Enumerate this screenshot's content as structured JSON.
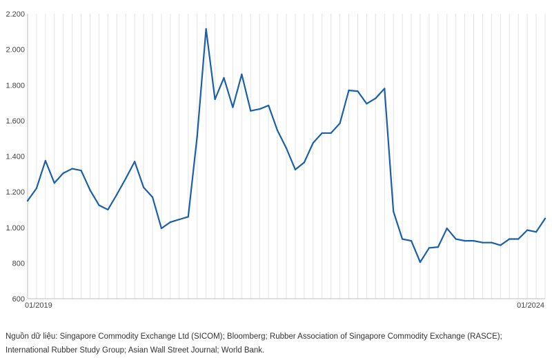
{
  "chart_data": {
    "type": "line",
    "title": "",
    "xlabel": "",
    "ylabel": "",
    "ylim": [
      600,
      2200
    ],
    "yticks": [
      600,
      800,
      1000,
      1200,
      1400,
      1600,
      1800,
      2000,
      2200
    ],
    "ytick_labels": [
      "600",
      "800",
      "1.000",
      "1.200",
      "1.400",
      "1.600",
      "1.800",
      "2.000",
      "2.200"
    ],
    "x_labels": [
      "01/2019",
      "01/2024"
    ],
    "grid": "vertical",
    "line_color": "#1a5fa8",
    "series": [
      {
        "values": [
          1150,
          1220,
          1375,
          1250,
          1305,
          1330,
          1320,
          1210,
          1125,
          1100,
          1185,
          1275,
          1370,
          1225,
          1170,
          995,
          1030,
          1045,
          1060,
          1510,
          2115,
          1720,
          1840,
          1675,
          1860,
          1655,
          1665,
          1685,
          1545,
          1445,
          1325,
          1365,
          1475,
          1530,
          1530,
          1585,
          1770,
          1765,
          1695,
          1725,
          1780,
          1090,
          935,
          925,
          805,
          885,
          890,
          995,
          935,
          925,
          925,
          915,
          915,
          900,
          935,
          935,
          985,
          975,
          1050
        ]
      }
    ]
  },
  "source": {
    "text": "Nguồn dữ liệu: Singapore Commodity Exchange Ltd (SICOM); Bloomberg; Rubber Association of Singapore Commodity Exchange (RASCE); International Rubber Study Group; Asian Wall Street Journal; World Bank."
  }
}
